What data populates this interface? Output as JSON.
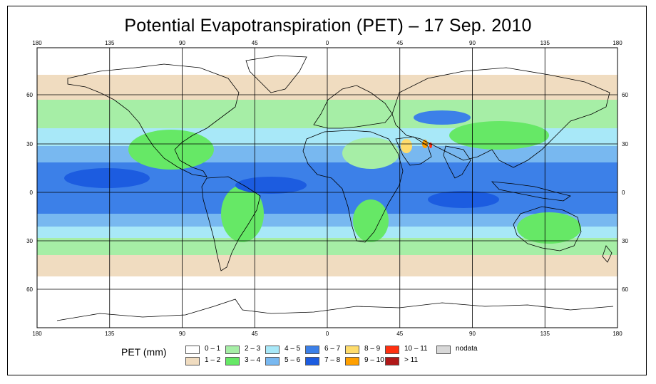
{
  "title": "Potential Evapotranspiration (PET) – 17 Sep. 2010",
  "map": {
    "lon_ticks": [
      "180",
      "135",
      "90",
      "45",
      "0",
      "45",
      "90",
      "135",
      "180"
    ],
    "lat_ticks_left": [
      "60",
      "30",
      "0",
      "30",
      "60"
    ],
    "lat_ticks_right": [
      "60",
      "30",
      "0",
      "30",
      "60"
    ]
  },
  "legend": {
    "title": "PET (mm)",
    "items": [
      {
        "label": "0 – 1",
        "color": "#ffffff"
      },
      {
        "label": "1 – 2",
        "color": "#f0dcc0"
      },
      {
        "label": "2 – 3",
        "color": "#a6eea6"
      },
      {
        "label": "3 – 4",
        "color": "#66e866"
      },
      {
        "label": "4 – 5",
        "color": "#a8e8f8"
      },
      {
        "label": "5 – 6",
        "color": "#78b8f0"
      },
      {
        "label": "6 – 7",
        "color": "#3c80e8"
      },
      {
        "label": "7 – 8",
        "color": "#1c5ce0"
      },
      {
        "label": "8 – 9",
        "color": "#fedc6c"
      },
      {
        "label": "9 – 10",
        "color": "#ffa000"
      },
      {
        "label": "10 – 11",
        "color": "#ff3010"
      },
      {
        "label": "> 11",
        "color": "#b01818"
      },
      {
        "label": "nodata",
        "color": "#d8d8d8"
      }
    ]
  }
}
